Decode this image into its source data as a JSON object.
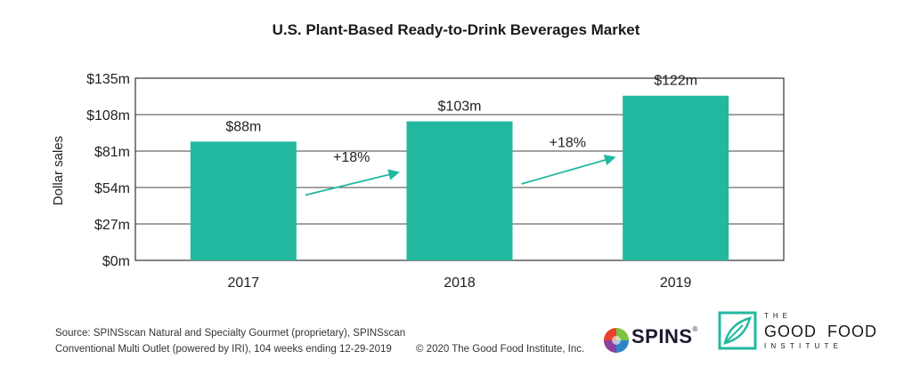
{
  "chart_data": {
    "type": "bar",
    "title": "U.S. Plant-Based Ready-to-Drink Beverages Market",
    "xlabel": "",
    "ylabel": "Dollar sales",
    "categories": [
      "2017",
      "2018",
      "2019"
    ],
    "values": [
      88,
      103,
      122
    ],
    "value_labels": [
      "$88m",
      "$103m",
      "$122m"
    ],
    "ylim": [
      0,
      135
    ],
    "yticks": [
      0,
      27,
      54,
      81,
      108,
      135
    ],
    "ytick_labels": [
      "$0m",
      "$27m",
      "$54m",
      "$81m",
      "$108m",
      "$135m"
    ],
    "growth_annotations": [
      {
        "from": "2017",
        "to": "2018",
        "label": "+18%"
      },
      {
        "from": "2018",
        "to": "2019",
        "label": "+18%"
      }
    ],
    "colors": {
      "bar": "#22b8a0",
      "arrow": "#22b8a0",
      "axis": "#333333"
    }
  },
  "footer": {
    "source_line1": "Source: SPINSscan Natural and Specialty Gourmet (proprietary), SPINSscan",
    "source_line2": "Conventional Multi Outlet (powered by IRI), 104 weeks ending 12-29-2019",
    "copyright": "© 2020 The Good Food Institute, Inc."
  },
  "logos": {
    "spins": {
      "text": "SPINS",
      "mark": "®"
    },
    "gfi": {
      "line1": "THE",
      "line2": "GOOD FOOD",
      "line3": "INSTITUTE"
    }
  }
}
